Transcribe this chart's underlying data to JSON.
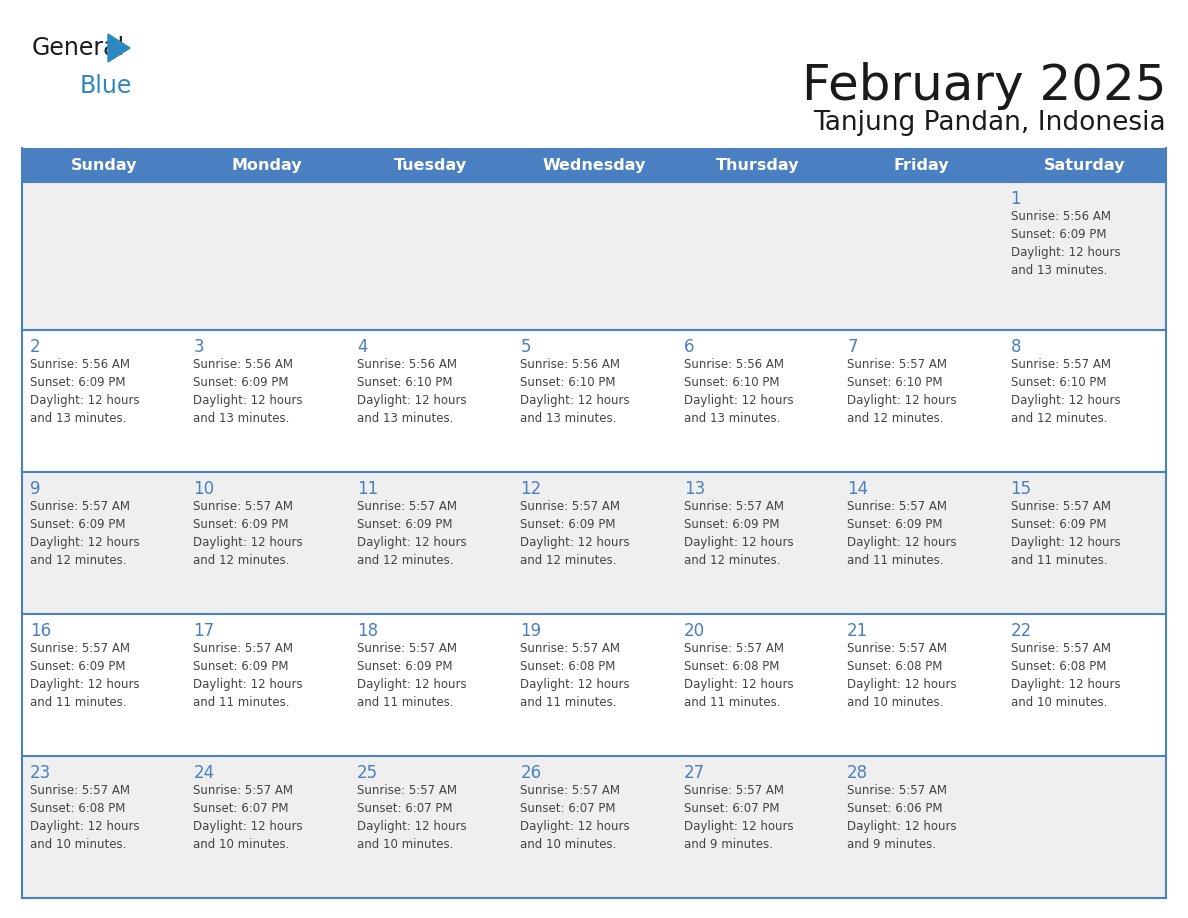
{
  "title": "February 2025",
  "subtitle": "Tanjung Pandan, Indonesia",
  "days_of_week": [
    "Sunday",
    "Monday",
    "Tuesday",
    "Wednesday",
    "Thursday",
    "Friday",
    "Saturday"
  ],
  "header_bg_color": "#4A7FC1",
  "header_text_color": "#FFFFFF",
  "cell_bg_week0": "#EFEFEF",
  "cell_bg_week1": "#FFFFFF",
  "cell_bg_week2": "#EFEFEF",
  "cell_bg_week3": "#FFFFFF",
  "cell_bg_week4": "#EFEFEF",
  "cell_border_top_color": "#4A7FC1",
  "day_number_color": "#4A7FC1",
  "text_color": "#444444",
  "title_color": "#1a1a1a",
  "logo_general_color": "#1a1a1a",
  "logo_blue_color": "#2E86C1",
  "logo_triangle_color": "#2E86C1",
  "calendar": [
    [
      {
        "day": null,
        "info": null
      },
      {
        "day": null,
        "info": null
      },
      {
        "day": null,
        "info": null
      },
      {
        "day": null,
        "info": null
      },
      {
        "day": null,
        "info": null
      },
      {
        "day": null,
        "info": null
      },
      {
        "day": 1,
        "info": "Sunrise: 5:56 AM\nSunset: 6:09 PM\nDaylight: 12 hours\nand 13 minutes."
      }
    ],
    [
      {
        "day": 2,
        "info": "Sunrise: 5:56 AM\nSunset: 6:09 PM\nDaylight: 12 hours\nand 13 minutes."
      },
      {
        "day": 3,
        "info": "Sunrise: 5:56 AM\nSunset: 6:09 PM\nDaylight: 12 hours\nand 13 minutes."
      },
      {
        "day": 4,
        "info": "Sunrise: 5:56 AM\nSunset: 6:10 PM\nDaylight: 12 hours\nand 13 minutes."
      },
      {
        "day": 5,
        "info": "Sunrise: 5:56 AM\nSunset: 6:10 PM\nDaylight: 12 hours\nand 13 minutes."
      },
      {
        "day": 6,
        "info": "Sunrise: 5:56 AM\nSunset: 6:10 PM\nDaylight: 12 hours\nand 13 minutes."
      },
      {
        "day": 7,
        "info": "Sunrise: 5:57 AM\nSunset: 6:10 PM\nDaylight: 12 hours\nand 12 minutes."
      },
      {
        "day": 8,
        "info": "Sunrise: 5:57 AM\nSunset: 6:10 PM\nDaylight: 12 hours\nand 12 minutes."
      }
    ],
    [
      {
        "day": 9,
        "info": "Sunrise: 5:57 AM\nSunset: 6:09 PM\nDaylight: 12 hours\nand 12 minutes."
      },
      {
        "day": 10,
        "info": "Sunrise: 5:57 AM\nSunset: 6:09 PM\nDaylight: 12 hours\nand 12 minutes."
      },
      {
        "day": 11,
        "info": "Sunrise: 5:57 AM\nSunset: 6:09 PM\nDaylight: 12 hours\nand 12 minutes."
      },
      {
        "day": 12,
        "info": "Sunrise: 5:57 AM\nSunset: 6:09 PM\nDaylight: 12 hours\nand 12 minutes."
      },
      {
        "day": 13,
        "info": "Sunrise: 5:57 AM\nSunset: 6:09 PM\nDaylight: 12 hours\nand 12 minutes."
      },
      {
        "day": 14,
        "info": "Sunrise: 5:57 AM\nSunset: 6:09 PM\nDaylight: 12 hours\nand 11 minutes."
      },
      {
        "day": 15,
        "info": "Sunrise: 5:57 AM\nSunset: 6:09 PM\nDaylight: 12 hours\nand 11 minutes."
      }
    ],
    [
      {
        "day": 16,
        "info": "Sunrise: 5:57 AM\nSunset: 6:09 PM\nDaylight: 12 hours\nand 11 minutes."
      },
      {
        "day": 17,
        "info": "Sunrise: 5:57 AM\nSunset: 6:09 PM\nDaylight: 12 hours\nand 11 minutes."
      },
      {
        "day": 18,
        "info": "Sunrise: 5:57 AM\nSunset: 6:09 PM\nDaylight: 12 hours\nand 11 minutes."
      },
      {
        "day": 19,
        "info": "Sunrise: 5:57 AM\nSunset: 6:08 PM\nDaylight: 12 hours\nand 11 minutes."
      },
      {
        "day": 20,
        "info": "Sunrise: 5:57 AM\nSunset: 6:08 PM\nDaylight: 12 hours\nand 11 minutes."
      },
      {
        "day": 21,
        "info": "Sunrise: 5:57 AM\nSunset: 6:08 PM\nDaylight: 12 hours\nand 10 minutes."
      },
      {
        "day": 22,
        "info": "Sunrise: 5:57 AM\nSunset: 6:08 PM\nDaylight: 12 hours\nand 10 minutes."
      }
    ],
    [
      {
        "day": 23,
        "info": "Sunrise: 5:57 AM\nSunset: 6:08 PM\nDaylight: 12 hours\nand 10 minutes."
      },
      {
        "day": 24,
        "info": "Sunrise: 5:57 AM\nSunset: 6:07 PM\nDaylight: 12 hours\nand 10 minutes."
      },
      {
        "day": 25,
        "info": "Sunrise: 5:57 AM\nSunset: 6:07 PM\nDaylight: 12 hours\nand 10 minutes."
      },
      {
        "day": 26,
        "info": "Sunrise: 5:57 AM\nSunset: 6:07 PM\nDaylight: 12 hours\nand 10 minutes."
      },
      {
        "day": 27,
        "info": "Sunrise: 5:57 AM\nSunset: 6:07 PM\nDaylight: 12 hours\nand 9 minutes."
      },
      {
        "day": 28,
        "info": "Sunrise: 5:57 AM\nSunset: 6:06 PM\nDaylight: 12 hours\nand 9 minutes."
      },
      {
        "day": null,
        "info": null
      }
    ]
  ]
}
